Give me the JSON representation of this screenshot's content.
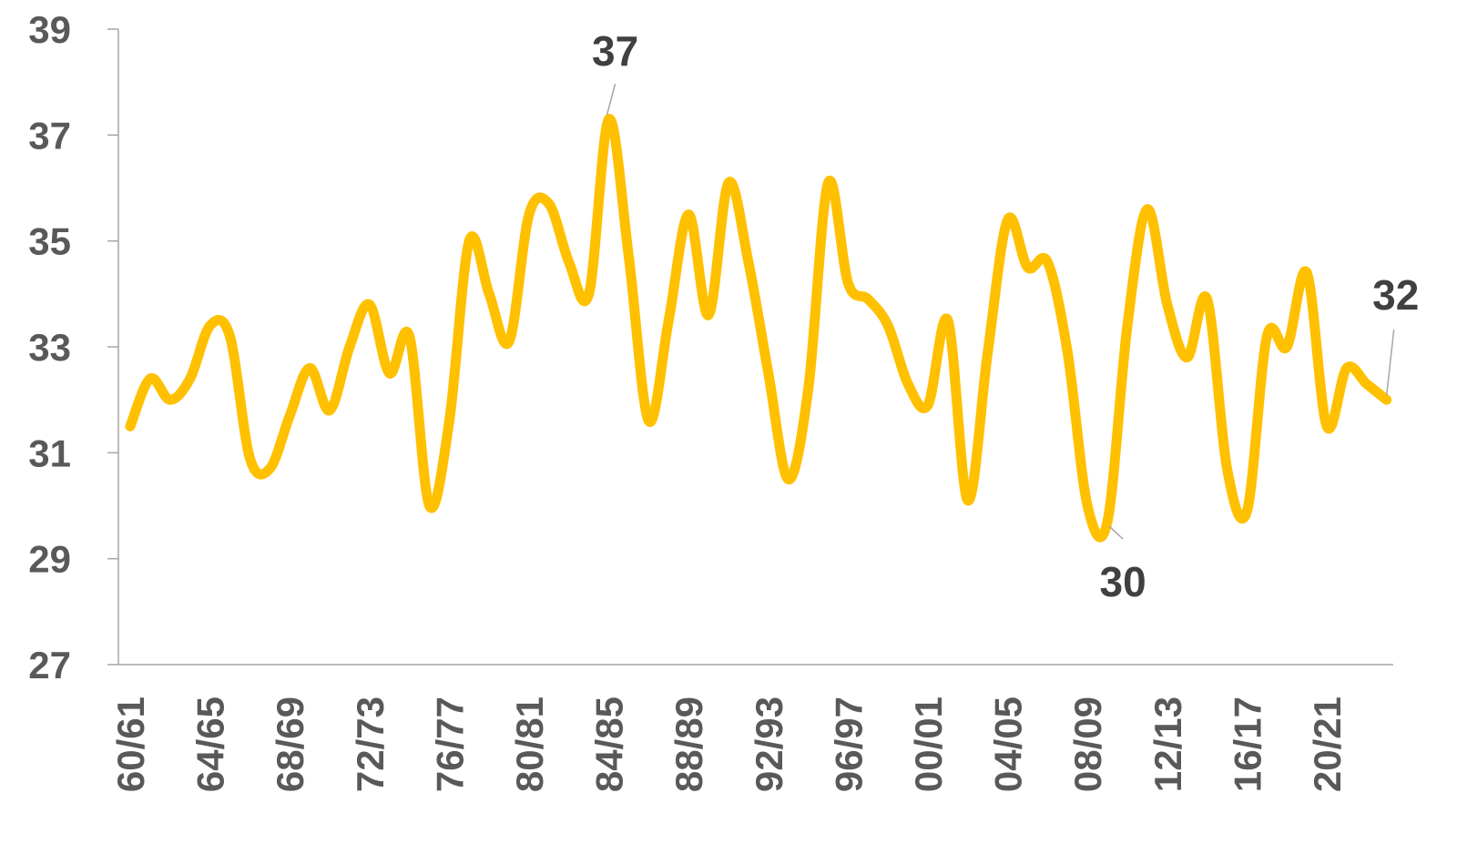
{
  "chart_data": {
    "type": "line",
    "categories": [
      "60/61",
      null,
      null,
      null,
      "64/65",
      null,
      null,
      null,
      "68/69",
      null,
      null,
      null,
      "72/73",
      null,
      null,
      null,
      "76/77",
      null,
      null,
      null,
      "80/81",
      null,
      null,
      null,
      "84/85",
      null,
      null,
      null,
      "88/89",
      null,
      null,
      null,
      "92/93",
      null,
      null,
      null,
      "96/97",
      null,
      null,
      null,
      "00/01",
      null,
      null,
      null,
      "04/05",
      null,
      null,
      null,
      "08/09",
      null,
      null,
      null,
      "12/13",
      null,
      null,
      null,
      "16/17",
      null,
      null,
      null,
      "20/21",
      null,
      null,
      null
    ],
    "series": [
      {
        "color": "#FFC000",
        "values": [
          31.5,
          32.4,
          32.0,
          32.4,
          33.4,
          33.2,
          30.9,
          30.7,
          31.7,
          32.6,
          31.8,
          33.0,
          33.8,
          32.5,
          33.2,
          30.0,
          31.6,
          35.0,
          34.0,
          33.1,
          35.5,
          35.7,
          34.6,
          34.0,
          37.3,
          34.7,
          31.6,
          33.5,
          35.5,
          33.6,
          36.1,
          34.6,
          32.5,
          30.5,
          32.2,
          36.1,
          34.2,
          33.9,
          33.4,
          32.3,
          31.9,
          33.5,
          30.1,
          32.9,
          35.4,
          34.5,
          34.6,
          32.9,
          30.0,
          29.7,
          33.4,
          35.6,
          33.8,
          32.8,
          33.9,
          30.7,
          29.9,
          33.2,
          33.0,
          34.4,
          31.5,
          32.6,
          32.3,
          32.0
        ],
        "value_labels": [
          null,
          null,
          null,
          null,
          null,
          null,
          null,
          null,
          null,
          null,
          null,
          null,
          null,
          null,
          null,
          null,
          null,
          null,
          null,
          null,
          null,
          null,
          null,
          null,
          "37",
          null,
          null,
          null,
          null,
          null,
          null,
          null,
          null,
          null,
          null,
          null,
          null,
          null,
          null,
          null,
          null,
          null,
          null,
          null,
          null,
          null,
          null,
          null,
          null,
          "30",
          null,
          null,
          null,
          null,
          null,
          null,
          null,
          null,
          null,
          null,
          null,
          null,
          null,
          "32"
        ]
      }
    ],
    "ylim": [
      27,
      39
    ],
    "yticks": [
      27,
      29,
      31,
      33,
      35,
      37,
      39
    ],
    "grid": false
  }
}
